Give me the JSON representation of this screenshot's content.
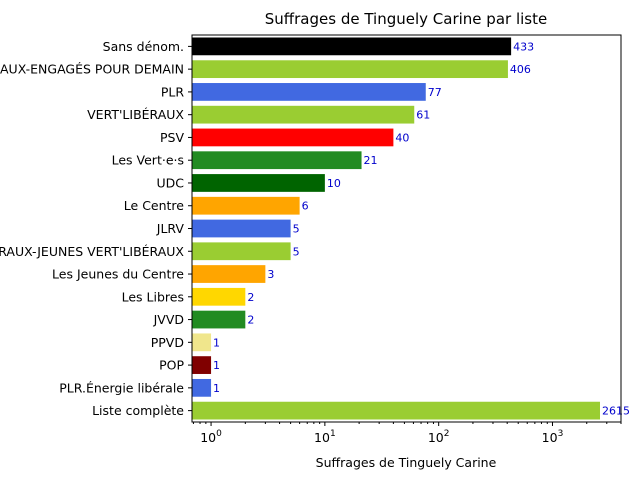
{
  "chart_data": {
    "type": "bar",
    "orientation": "horizontal",
    "title": "Suffrages de Tinguely Carine par liste",
    "xlabel": "Suffrages de Tinguely Carine",
    "ylabel": "",
    "xscale": "log",
    "xlim": [
      0.68,
      4000
    ],
    "x_ticks": [
      {
        "base": "10",
        "exp": "0",
        "value": 1
      },
      {
        "base": "10",
        "exp": "1",
        "value": 10
      },
      {
        "base": "10",
        "exp": "2",
        "value": 100
      },
      {
        "base": "10",
        "exp": "3",
        "value": 1000
      }
    ],
    "grid": false,
    "legend": "none",
    "categories": [
      "Sans dénom.",
      "VERT'LIBÉRAUX-ENGAGÉS POUR DEMAIN",
      "PLR",
      "VERT'LIBÉRAUX",
      "PSV",
      "Les Vert·e·s",
      "UDC",
      "Le Centre",
      "JLRV",
      "VERT'LIBÉRAUX-JEUNES VERT'LIBÉRAUX",
      "Les Jeunes du Centre",
      "Les Libres",
      "JVVD",
      "PPVD",
      "POP",
      "PLR.Énergie libérale",
      "Liste complète"
    ],
    "values": [
      433,
      406,
      77,
      61,
      40,
      21,
      10,
      6,
      5,
      5,
      3,
      2,
      2,
      1,
      1,
      1,
      2615
    ],
    "colors": [
      "#000000",
      "#9acd32",
      "#4169e1",
      "#9acd32",
      "#ff0000",
      "#228b22",
      "#006400",
      "#ffa500",
      "#4169e1",
      "#9acd32",
      "#ffa500",
      "#ffd700",
      "#228b22",
      "#f0e68c",
      "#800000",
      "#4169e1",
      "#9acd32"
    ],
    "data_label_color": "#0000cc"
  }
}
